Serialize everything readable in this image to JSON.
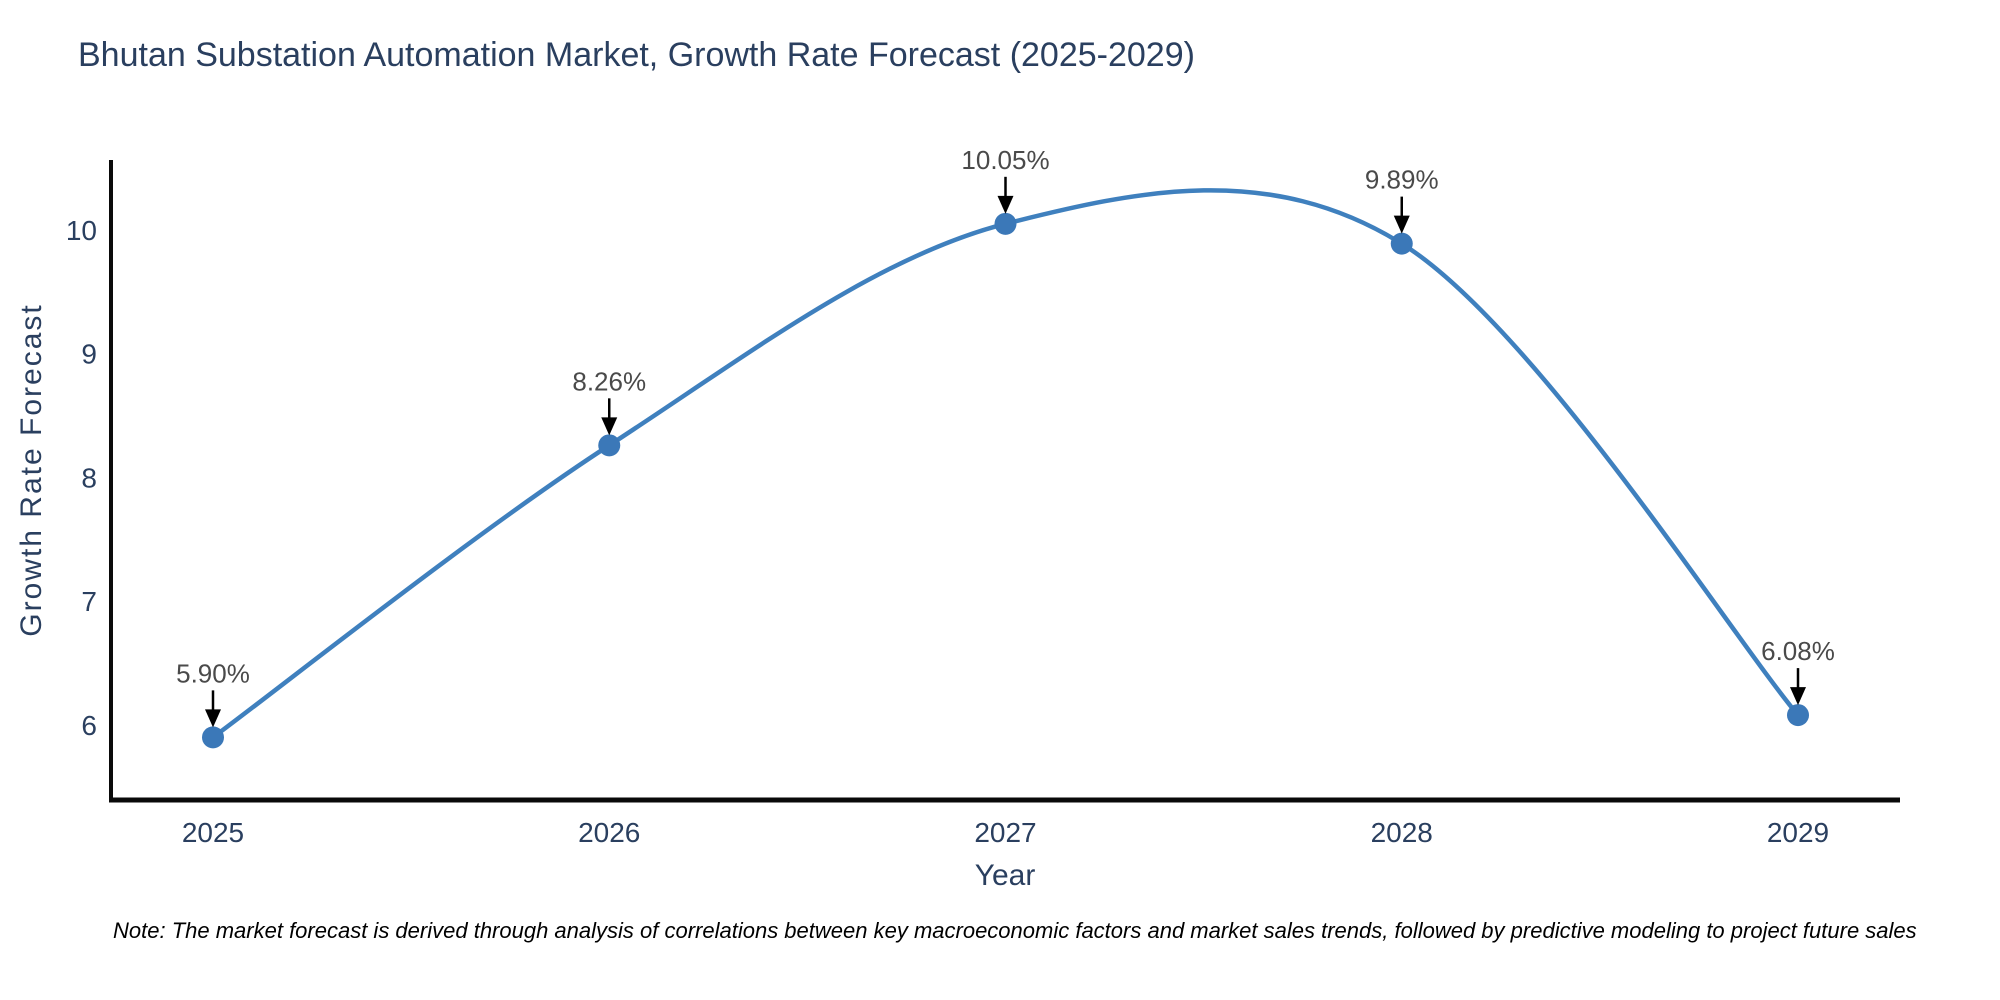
{
  "title": "Bhutan Substation Automation Market, Growth Rate Forecast (2025-2029)",
  "note": "Note: The market forecast is derived through analysis of correlations between key macroeconomic factors and market sales trends, followed by predictive modeling to project future sales",
  "chart_data": {
    "type": "line",
    "curve": "spline",
    "title": "Bhutan Substation Automation Market, Growth Rate Forecast (2025-2029)",
    "xlabel": "Year",
    "ylabel": "Growth Rate Forecast",
    "categories": [
      2025,
      2026,
      2027,
      2028,
      2029
    ],
    "values": [
      5.9,
      8.26,
      10.05,
      9.89,
      6.08
    ],
    "point_labels": [
      "5.90%",
      "8.26%",
      "10.05%",
      "9.89%",
      "6.08%"
    ],
    "y_ticks": [
      6,
      7,
      8,
      9,
      10
    ],
    "ylim": [
      5.39,
      10.57
    ],
    "grid": false,
    "legend": "none",
    "colors": {
      "line": "#3F80BE",
      "marker": "#3B78B8",
      "axis": "#0a0a0a",
      "tick_text": "#2a3f5f",
      "annotation_text": "#4a4a4a",
      "arrow": "#000000"
    }
  }
}
